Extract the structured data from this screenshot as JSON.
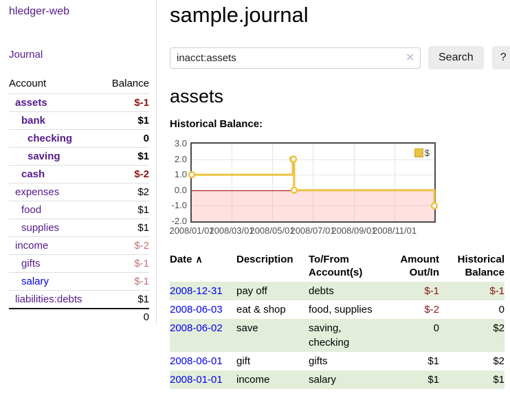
{
  "app": {
    "title": "hledger-web"
  },
  "sidebar": {
    "journal_link": "Journal",
    "table": {
      "account_header": "Account",
      "balance_header": "Balance",
      "rows": [
        {
          "label": "assets",
          "indent": 1,
          "bold": true,
          "amount": "$-1",
          "amount_class": "neg-strong"
        },
        {
          "label": "bank",
          "indent": 2,
          "bold": true,
          "amount": "$1",
          "amount_class": ""
        },
        {
          "label": "checking",
          "indent": 3,
          "bold": true,
          "amount": "0",
          "amount_class": ""
        },
        {
          "label": "saving",
          "indent": 3,
          "bold": true,
          "amount": "$1",
          "amount_class": ""
        },
        {
          "label": "cash",
          "indent": 2,
          "bold": true,
          "amount": "$-2",
          "amount_class": "neg-strong"
        },
        {
          "label": "expenses",
          "indent": 1,
          "bold": false,
          "amount": "$2",
          "amount_class": ""
        },
        {
          "label": "food",
          "indent": 2,
          "bold": false,
          "amount": "$1",
          "amount_class": ""
        },
        {
          "label": "supplies",
          "indent": 2,
          "bold": false,
          "amount": "$1",
          "amount_class": ""
        },
        {
          "label": "income",
          "indent": 1,
          "bold": false,
          "amount": "$-2",
          "amount_class": "neg-soft"
        },
        {
          "label": "gifts",
          "indent": 2,
          "bold": false,
          "amount": "$-1",
          "amount_class": "neg-soft"
        },
        {
          "label": "salary",
          "indent": 2,
          "bold": false,
          "amount": "$-1",
          "amount_class": "neg-soft",
          "blue": true
        },
        {
          "label": "liabilities:debts",
          "indent": 1,
          "bold": false,
          "amount": "$1",
          "amount_class": ""
        }
      ],
      "total": "0"
    }
  },
  "main": {
    "title": "sample.journal",
    "search": {
      "value": "inacct:assets",
      "clear_icon": "✕",
      "search_button": "Search",
      "help_button": "?"
    },
    "account_heading": "assets",
    "chart_label": "Historical Balance:"
  },
  "chart_data": {
    "type": "line",
    "step": true,
    "title": "Historical Balance:",
    "xlabel": "",
    "ylabel": "",
    "legend_position": "top-right",
    "grid": true,
    "xlim": [
      "2008-01-01",
      "2008-12-31"
    ],
    "ylim": [
      -2,
      3
    ],
    "y_ticks": [
      "3.0",
      "2.0",
      "1.0",
      "0.0",
      "-1.0",
      "-2.0"
    ],
    "x_ticks": [
      "2008/01/01",
      "2008/03/01",
      "2008/05/01",
      "2008/07/01",
      "2008/09/01",
      "2008/11/01"
    ],
    "series": [
      {
        "name": "$",
        "color": "#edc240",
        "points": [
          [
            "2008-01-01",
            1
          ],
          [
            "2008-06-01",
            2
          ],
          [
            "2008-06-02",
            2
          ],
          [
            "2008-06-03",
            0
          ],
          [
            "2008-12-31",
            -1
          ]
        ]
      }
    ],
    "negative_region_color": "#fbdada",
    "zero_line_color": "#990000"
  },
  "journal_table": {
    "sort_icon": "∧",
    "columns": [
      {
        "label": "Date",
        "align": "left",
        "sortable": true
      },
      {
        "label": "Description",
        "align": "left"
      },
      {
        "label": "To/From Account(s)",
        "align": "left"
      },
      {
        "label": "Amount Out/In",
        "align": "right"
      },
      {
        "label": "Historical Balance",
        "align": "right"
      }
    ],
    "rows": [
      {
        "date": "2008-12-31",
        "description": "pay off",
        "accounts": "debts",
        "amount": "$-1",
        "amount_neg": true,
        "balance": "$-1",
        "balance_neg": true
      },
      {
        "date": "2008-06-03",
        "description": "eat & shop",
        "accounts": "food, supplies",
        "amount": "$-2",
        "amount_neg": true,
        "balance": "0",
        "balance_neg": false
      },
      {
        "date": "2008-06-02",
        "description": "save",
        "accounts": "saving, checking",
        "amount": "0",
        "amount_neg": false,
        "balance": "$2",
        "balance_neg": false
      },
      {
        "date": "2008-06-01",
        "description": "gift",
        "accounts": "gifts",
        "amount": "$1",
        "amount_neg": false,
        "balance": "$2",
        "balance_neg": false
      },
      {
        "date": "2008-01-01",
        "description": "income",
        "accounts": "salary",
        "amount": "$1",
        "amount_neg": false,
        "balance": "$1",
        "balance_neg": false
      }
    ]
  },
  "colors": {
    "link_purple": "#551a8b",
    "link_blue": "#0000ee",
    "negative_strong": "#8e1414",
    "negative_soft": "#c17272",
    "row_stripe_green": "#e2eeda",
    "series_yellow": "#edc240",
    "zero_line_red": "#990000",
    "plot_border": "#4a4a4a"
  }
}
